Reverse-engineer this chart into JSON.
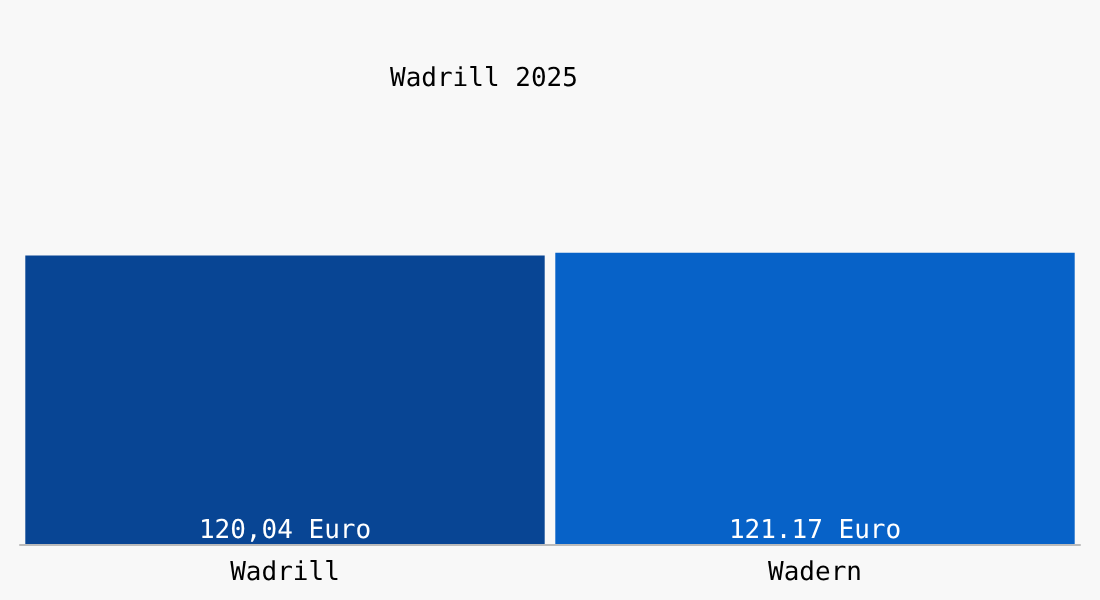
{
  "chart_data": {
    "type": "bar",
    "title": "Wadrill 2025",
    "categories": [
      "Wadrill",
      "Wadern"
    ],
    "values": [
      120.04,
      121.17
    ],
    "colors": [
      "#084594",
      "#0762c8"
    ],
    "value_labels": [
      "120,04 Euro",
      "121.17 Euro"
    ]
  }
}
